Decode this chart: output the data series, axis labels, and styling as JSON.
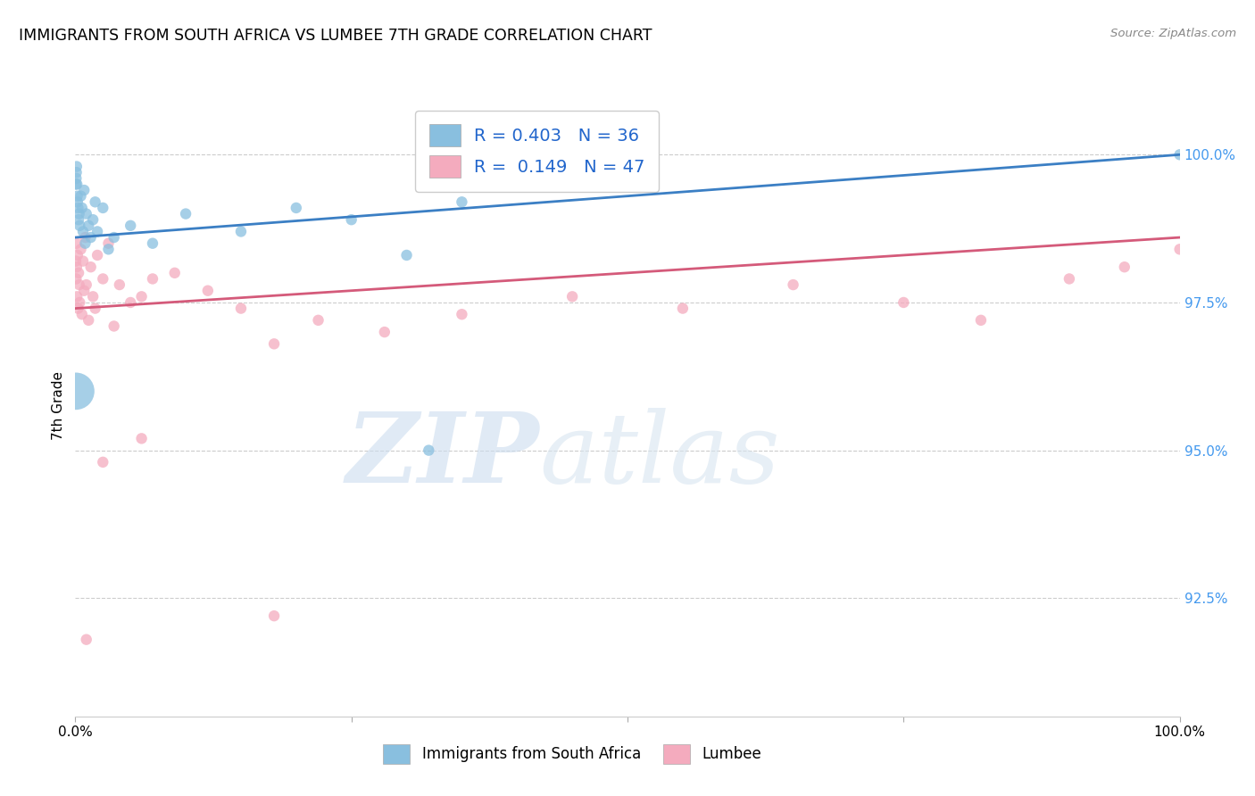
{
  "title": "IMMIGRANTS FROM SOUTH AFRICA VS LUMBEE 7TH GRADE CORRELATION CHART",
  "source": "Source: ZipAtlas.com",
  "ylabel": "7th Grade",
  "right_yticks": [
    92.5,
    95.0,
    97.5,
    100.0
  ],
  "right_yticklabels": [
    "92.5%",
    "95.0%",
    "97.5%",
    "100.0%"
  ],
  "blue_R": 0.403,
  "blue_N": 36,
  "pink_R": 0.149,
  "pink_N": 47,
  "blue_color": "#89bfdf",
  "pink_color": "#f4abbe",
  "blue_line_color": "#3b7fc4",
  "pink_line_color": "#d45a7a",
  "blue_legend": "Immigrants from South Africa",
  "pink_legend": "Lumbee",
  "watermark_zip": "ZIP",
  "watermark_atlas": "atlas",
  "xlim": [
    0,
    100
  ],
  "ylim": [
    90.5,
    101.0
  ],
  "figsize": [
    14.06,
    8.92
  ],
  "dpi": 100,
  "blue_line_x": [
    0,
    100
  ],
  "blue_line_y": [
    98.6,
    100.0
  ],
  "pink_line_x": [
    0,
    100
  ],
  "pink_line_y": [
    97.4,
    98.6
  ],
  "blue_x": [
    0.05,
    0.08,
    0.1,
    0.12,
    0.15,
    0.18,
    0.2,
    0.25,
    0.3,
    0.35,
    0.4,
    0.5,
    0.6,
    0.7,
    0.8,
    0.9,
    1.0,
    1.2,
    1.4,
    1.6,
    1.8,
    2.0,
    2.5,
    3.0,
    3.5,
    5.0,
    7.0,
    10.0,
    15.0,
    20.0,
    25.0,
    30.0,
    35.0,
    0.05,
    32.0,
    100.0
  ],
  "blue_y": [
    99.5,
    99.6,
    99.7,
    99.8,
    99.5,
    99.3,
    99.2,
    99.1,
    98.9,
    99.0,
    98.8,
    99.3,
    99.1,
    98.7,
    99.4,
    98.5,
    99.0,
    98.8,
    98.6,
    98.9,
    99.2,
    98.7,
    99.1,
    98.4,
    98.6,
    98.8,
    98.5,
    99.0,
    98.7,
    99.1,
    98.9,
    98.3,
    99.2,
    96.0,
    95.0,
    100.0
  ],
  "blue_sizes": [
    80,
    80,
    80,
    80,
    80,
    80,
    80,
    80,
    80,
    80,
    80,
    80,
    80,
    80,
    80,
    80,
    80,
    80,
    80,
    80,
    80,
    80,
    80,
    80,
    80,
    80,
    80,
    80,
    80,
    80,
    80,
    80,
    80,
    900,
    80,
    80
  ],
  "pink_x": [
    0.05,
    0.08,
    0.1,
    0.12,
    0.15,
    0.2,
    0.25,
    0.3,
    0.35,
    0.4,
    0.5,
    0.6,
    0.7,
    0.8,
    0.9,
    1.0,
    1.2,
    1.4,
    1.6,
    1.8,
    2.0,
    2.5,
    3.0,
    3.5,
    4.0,
    5.0,
    6.0,
    7.0,
    9.0,
    12.0,
    15.0,
    18.0,
    22.0,
    28.0,
    35.0,
    45.0,
    55.0,
    65.0,
    75.0,
    82.0,
    90.0,
    95.0,
    100.0,
    1.0,
    2.5,
    6.0,
    18.0
  ],
  "pink_y": [
    98.2,
    97.9,
    98.5,
    98.1,
    97.6,
    98.3,
    97.4,
    98.0,
    97.8,
    97.5,
    98.4,
    97.3,
    98.2,
    97.7,
    98.6,
    97.8,
    97.2,
    98.1,
    97.6,
    97.4,
    98.3,
    97.9,
    98.5,
    97.1,
    97.8,
    97.5,
    97.6,
    97.9,
    98.0,
    97.7,
    97.4,
    96.8,
    97.2,
    97.0,
    97.3,
    97.6,
    97.4,
    97.8,
    97.5,
    97.2,
    97.9,
    98.1,
    98.4,
    91.8,
    94.8,
    95.2,
    92.2
  ],
  "pink_sizes": [
    80,
    80,
    80,
    80,
    80,
    80,
    80,
    80,
    80,
    80,
    80,
    80,
    80,
    80,
    80,
    80,
    80,
    80,
    80,
    80,
    80,
    80,
    80,
    80,
    80,
    80,
    80,
    80,
    80,
    80,
    80,
    80,
    80,
    80,
    80,
    80,
    80,
    80,
    80,
    80,
    80,
    80,
    80,
    80,
    80,
    80,
    80
  ]
}
